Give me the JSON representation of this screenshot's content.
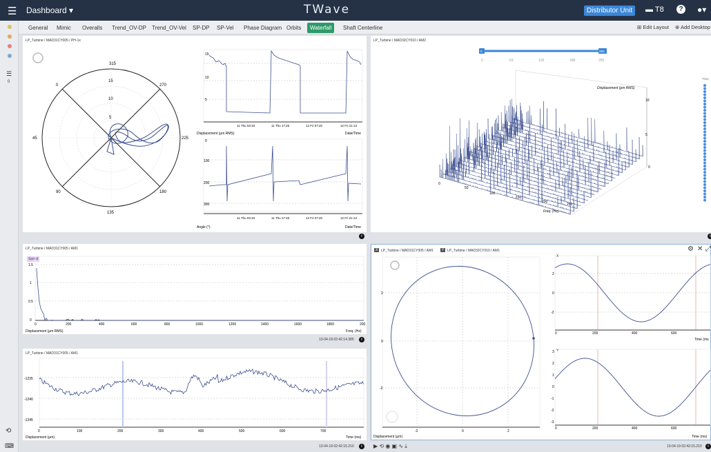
{
  "topbar": {
    "menu_icon": "hamburger-icon",
    "dashboard_label": "Dashboard ▾",
    "logo": "TWave",
    "unit_button": "Distributor Unit",
    "screen_label": "T8",
    "help": "?",
    "user": "user-icon"
  },
  "leftbar": {
    "list_count": "0"
  },
  "tabs": [
    "General",
    "Mimic",
    "Overalls",
    "Trend_OV-DP",
    "Trend_OV-Vel",
    "SP-DP",
    "SP-Vel",
    "Phase Diagram",
    "Orbits",
    "Waterfall",
    "Shaft Centerline"
  ],
  "active_tab": "Waterfall",
  "tools": {
    "edit_layout": "Edit Layout",
    "add_desktop": "Add Desktop"
  },
  "polar_panel": {
    "title": "LP_Turbine / MAD31CY005 / PH-1x",
    "angle_labels": [
      "315",
      "270",
      "225",
      "180",
      "135",
      "90",
      "45",
      "0"
    ],
    "radial_labels": [
      "15",
      "10",
      "5"
    ],
    "trend_top": {
      "yticks": [
        "15",
        "10",
        "5"
      ],
      "xticks": [
        "11 Thu 03:33",
        "11 Thu 17:26",
        "12 Fri 07:20",
        "12 Fri 21:13"
      ],
      "ylabel": "Displacement (μm RMS)",
      "xlabel": "Date/Time"
    },
    "trend_bottom": {
      "yticks": [
        "0",
        "100",
        "200",
        "300"
      ],
      "xticks": [
        "11 Thu 03:33",
        "11 Thu 17:26",
        "12 Fri 07:20",
        "12 Fri 21:13"
      ],
      "ylabel": "Angle (°)",
      "xlabel": "Date/Time"
    }
  },
  "waterfall_panel": {
    "title": "LP_Turbine / MAD32CY010 / AM2",
    "slider": {
      "min": "0",
      "max": "250",
      "ticks": [
        "0",
        "63",
        "125",
        "188",
        "250"
      ]
    },
    "zlabel": "Displacement (μm RMS)",
    "zticks": [
      "10",
      "5",
      "0"
    ],
    "xticks": [
      "0",
      "50",
      "100",
      "150",
      "200",
      "250"
    ],
    "xlabel": "Freq. (Hz)",
    "time_label": "Time"
  },
  "spectrum_panel": {
    "title": "LP_Turbine / MAD31CY005 / AM1",
    "badge": "Speed",
    "yticks": [
      "1.5",
      "1",
      "0.5",
      "0"
    ],
    "xticks": [
      "0",
      "200",
      "400",
      "600",
      "800",
      "1000",
      "1200",
      "1400",
      "1600",
      "1800",
      "200"
    ],
    "ylabel": "Displacement (μm RMS)",
    "xlabel": "Freq. (Hz)",
    "timestamp": "13-04-19 02:42:14.385"
  },
  "timewave_panel": {
    "title": "LP_Turbine / MAD31CY005 / AM1",
    "yticks": [
      "-1235",
      "-1240",
      "-1245"
    ],
    "xticks": [
      "0",
      "100",
      "200",
      "300",
      "400",
      "500",
      "600",
      "700"
    ],
    "ylabel": "Displacement (μm)",
    "xlabel": "Time (ms)",
    "timestamp": "13-04-19 02:42:15.210"
  },
  "orbit_panel": {
    "x_badge": "X",
    "x_title": "LP_Turbine / MAD31CY005 / AM1",
    "y_badge": "Y",
    "y_title": "LP_Turbine / MAD32CY010 / AM1",
    "yticks": [
      "2",
      "0",
      "-2"
    ],
    "xticks": [
      "-2",
      "0",
      "2"
    ],
    "xlabel": "Displacement (μm)",
    "top_badge": "X",
    "top_yticks": [
      "2",
      "0",
      "-2"
    ],
    "top_xticks": [
      "0",
      "200",
      "400",
      "600"
    ],
    "top_xlabel": "Time (ms",
    "bottom_badge": "Y",
    "bottom_yticks": [
      "3",
      "2",
      "1",
      "0",
      "-1",
      "-2",
      "-3"
    ],
    "bottom_xticks": [
      "0",
      "200",
      "400",
      "600"
    ],
    "bottom_xlabel": "Time (ms)",
    "timestamp": "13-04-19 02:42:15.210"
  }
}
